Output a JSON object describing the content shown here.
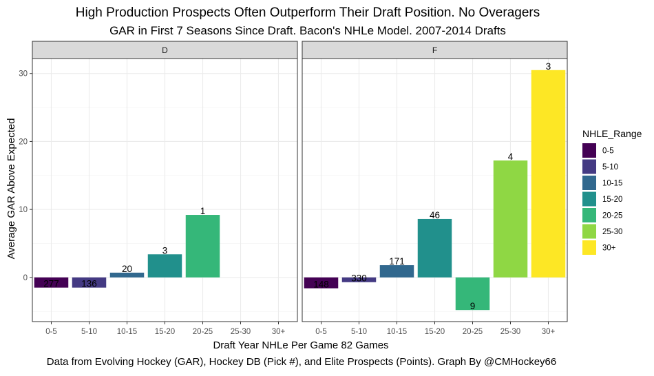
{
  "chart_data": {
    "type": "bar",
    "title": "High Production Prospects Often Outperform Their Draft Position. No Overagers",
    "subtitle": "GAR in First 7 Seasons Since Draft. Bacon's NHLe Model. 2007-2014 Drafts",
    "caption": "Data from Evolving Hockey (GAR), Hockey DB (Pick #), and Elite Prospects (Points). Graph By @CMHockey66",
    "xlabel": "Draft Year NHLe Per Game 82 Games",
    "ylabel": "Average GAR Above Expected",
    "ylim": [
      -6.5,
      32.2
    ],
    "yticks": [
      0,
      10,
      20,
      30
    ],
    "categories": [
      "0-5",
      "5-10",
      "10-15",
      "15-20",
      "20-25",
      "25-30",
      "30+"
    ],
    "legend": {
      "title": "NHLE_Range",
      "position": "right",
      "items": [
        {
          "label": "0-5",
          "color": "#440154"
        },
        {
          "label": "5-10",
          "color": "#443A83"
        },
        {
          "label": "10-15",
          "color": "#31688E"
        },
        {
          "label": "15-20",
          "color": "#21908C"
        },
        {
          "label": "20-25",
          "color": "#35B779"
        },
        {
          "label": "25-30",
          "color": "#8FD744"
        },
        {
          "label": "30+",
          "color": "#FDE725"
        }
      ]
    },
    "grid": true,
    "facets": [
      {
        "name": "D",
        "bars": [
          {
            "category": "0-5",
            "value": -1.5,
            "label": "277"
          },
          {
            "category": "5-10",
            "value": -1.5,
            "label": "136"
          },
          {
            "category": "10-15",
            "value": 0.7,
            "label": "20"
          },
          {
            "category": "15-20",
            "value": 3.4,
            "label": "3"
          },
          {
            "category": "20-25",
            "value": 9.2,
            "label": "1"
          }
        ]
      },
      {
        "name": "F",
        "bars": [
          {
            "category": "0-5",
            "value": -1.6,
            "label": "148"
          },
          {
            "category": "5-10",
            "value": -0.7,
            "label": "330"
          },
          {
            "category": "10-15",
            "value": 1.8,
            "label": "171"
          },
          {
            "category": "15-20",
            "value": 8.6,
            "label": "46"
          },
          {
            "category": "20-25",
            "value": -4.8,
            "label": "9"
          },
          {
            "category": "25-30",
            "value": 17.2,
            "label": "4"
          },
          {
            "category": "30+",
            "value": 30.5,
            "label": "3"
          }
        ]
      }
    ]
  }
}
